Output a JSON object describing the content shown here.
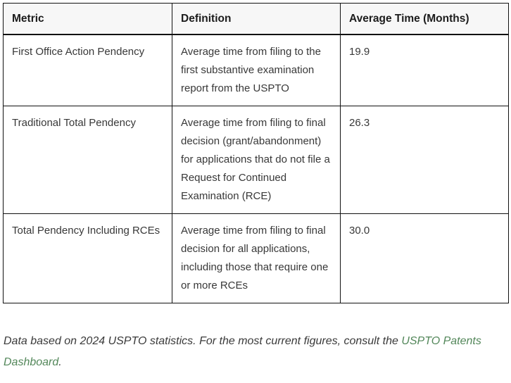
{
  "table": {
    "columns": [
      "Metric",
      "Definition",
      "Average Time (Months)"
    ],
    "rows": [
      {
        "metric": "First Office Action Pendency",
        "definition": "Average time from filing to the first substantive examination report from the USPTO",
        "avg_time": "19.9"
      },
      {
        "metric": "Traditional Total Pendency",
        "definition": "Average time from filing to final decision (grant/abandonment) for applications that do not file a Request for Continued Examination (RCE)",
        "avg_time": "26.3"
      },
      {
        "metric": "Total Pendency Including RCEs",
        "definition": "Average time from filing to final decision for all applications, including those that require one or more RCEs",
        "avg_time": "30.0"
      }
    ]
  },
  "footer": {
    "text_before_link": "Data based on 2024 USPTO statistics. For the most current figures, consult the ",
    "link_text": "USPTO Patents Dashboard",
    "text_after_link": ".",
    "link_color": "#53875a"
  }
}
